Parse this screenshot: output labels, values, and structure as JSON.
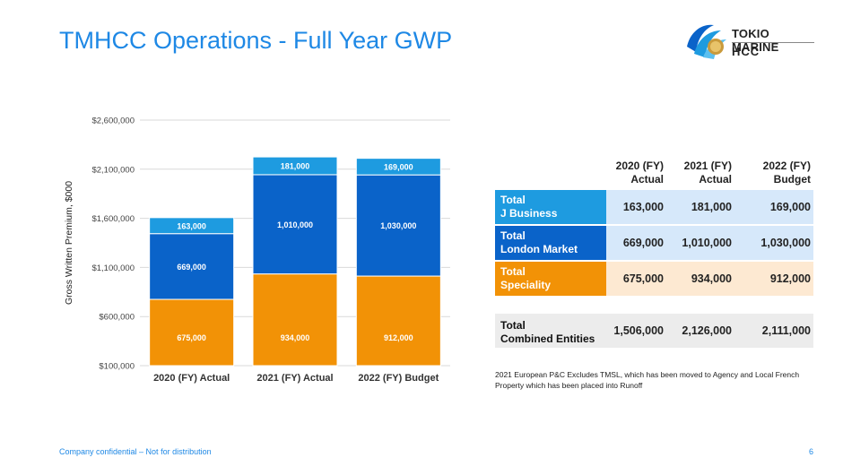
{
  "page": {
    "title": "TMHCC Operations - Full Year GWP",
    "footer": "Company confidential – Not for distribution",
    "page_number": "6"
  },
  "logo": {
    "line1": "TOKIO MARINE",
    "line2": "HCC"
  },
  "colors": {
    "title": "#1e88e5",
    "j_business": "#1e9be0",
    "london_market": "#0a63c9",
    "speciality": "#f29206",
    "row_light_blue": "#d6e8fa",
    "row_light_orange": "#fde9d2",
    "row_grey": "#ececec"
  },
  "chart_data": {
    "type": "bar",
    "stacked": true,
    "categories": [
      "2020 (FY) Actual",
      "2021 (FY) Actual",
      "2022 (FY) Budget"
    ],
    "series": [
      {
        "name": "Total Speciality",
        "values": [
          675000,
          934000,
          912000
        ],
        "labels": [
          "675,000",
          "934,000",
          "912,000"
        ]
      },
      {
        "name": "Total London Market",
        "values": [
          669000,
          1010000,
          1030000
        ],
        "labels": [
          "669,000",
          "1,010,000",
          "1,030,000"
        ]
      },
      {
        "name": "Total J Business",
        "values": [
          163000,
          181000,
          169000
        ],
        "labels": [
          "163,000",
          "181,000",
          "169,000"
        ]
      }
    ],
    "ylabel": "Gross Written Premium, $000",
    "ylim": [
      100000,
      2600000
    ],
    "yticks": [
      100000,
      600000,
      1100000,
      1600000,
      2100000,
      2600000
    ],
    "ytick_labels": [
      "$100,000",
      "$600,000",
      "$1,100,000",
      "$1,600,000",
      "$2,100,000",
      "$2,600,000"
    ],
    "grid": true
  },
  "table": {
    "headers": [
      "2020 (FY)\nActual",
      "2021 (FY)\nActual",
      "2022 (FY)\nBudget"
    ],
    "rows": [
      {
        "label": "Total\nJ Business",
        "values": [
          "163,000",
          "181,000",
          "169,000"
        ]
      },
      {
        "label": "Total\nLondon Market",
        "values": [
          "669,000",
          "1,010,000",
          "1,030,000"
        ]
      },
      {
        "label": "Total\nSpeciality",
        "values": [
          "675,000",
          "934,000",
          "912,000"
        ]
      }
    ],
    "total": {
      "label": "Total\nCombined Entities",
      "values": [
        "1,506,000",
        "2,126,000",
        "2,111,000"
      ]
    }
  },
  "note": "2021 European P&C Excludes TMSL, which has been moved to Agency and Local French Property which has been placed into Runoff"
}
